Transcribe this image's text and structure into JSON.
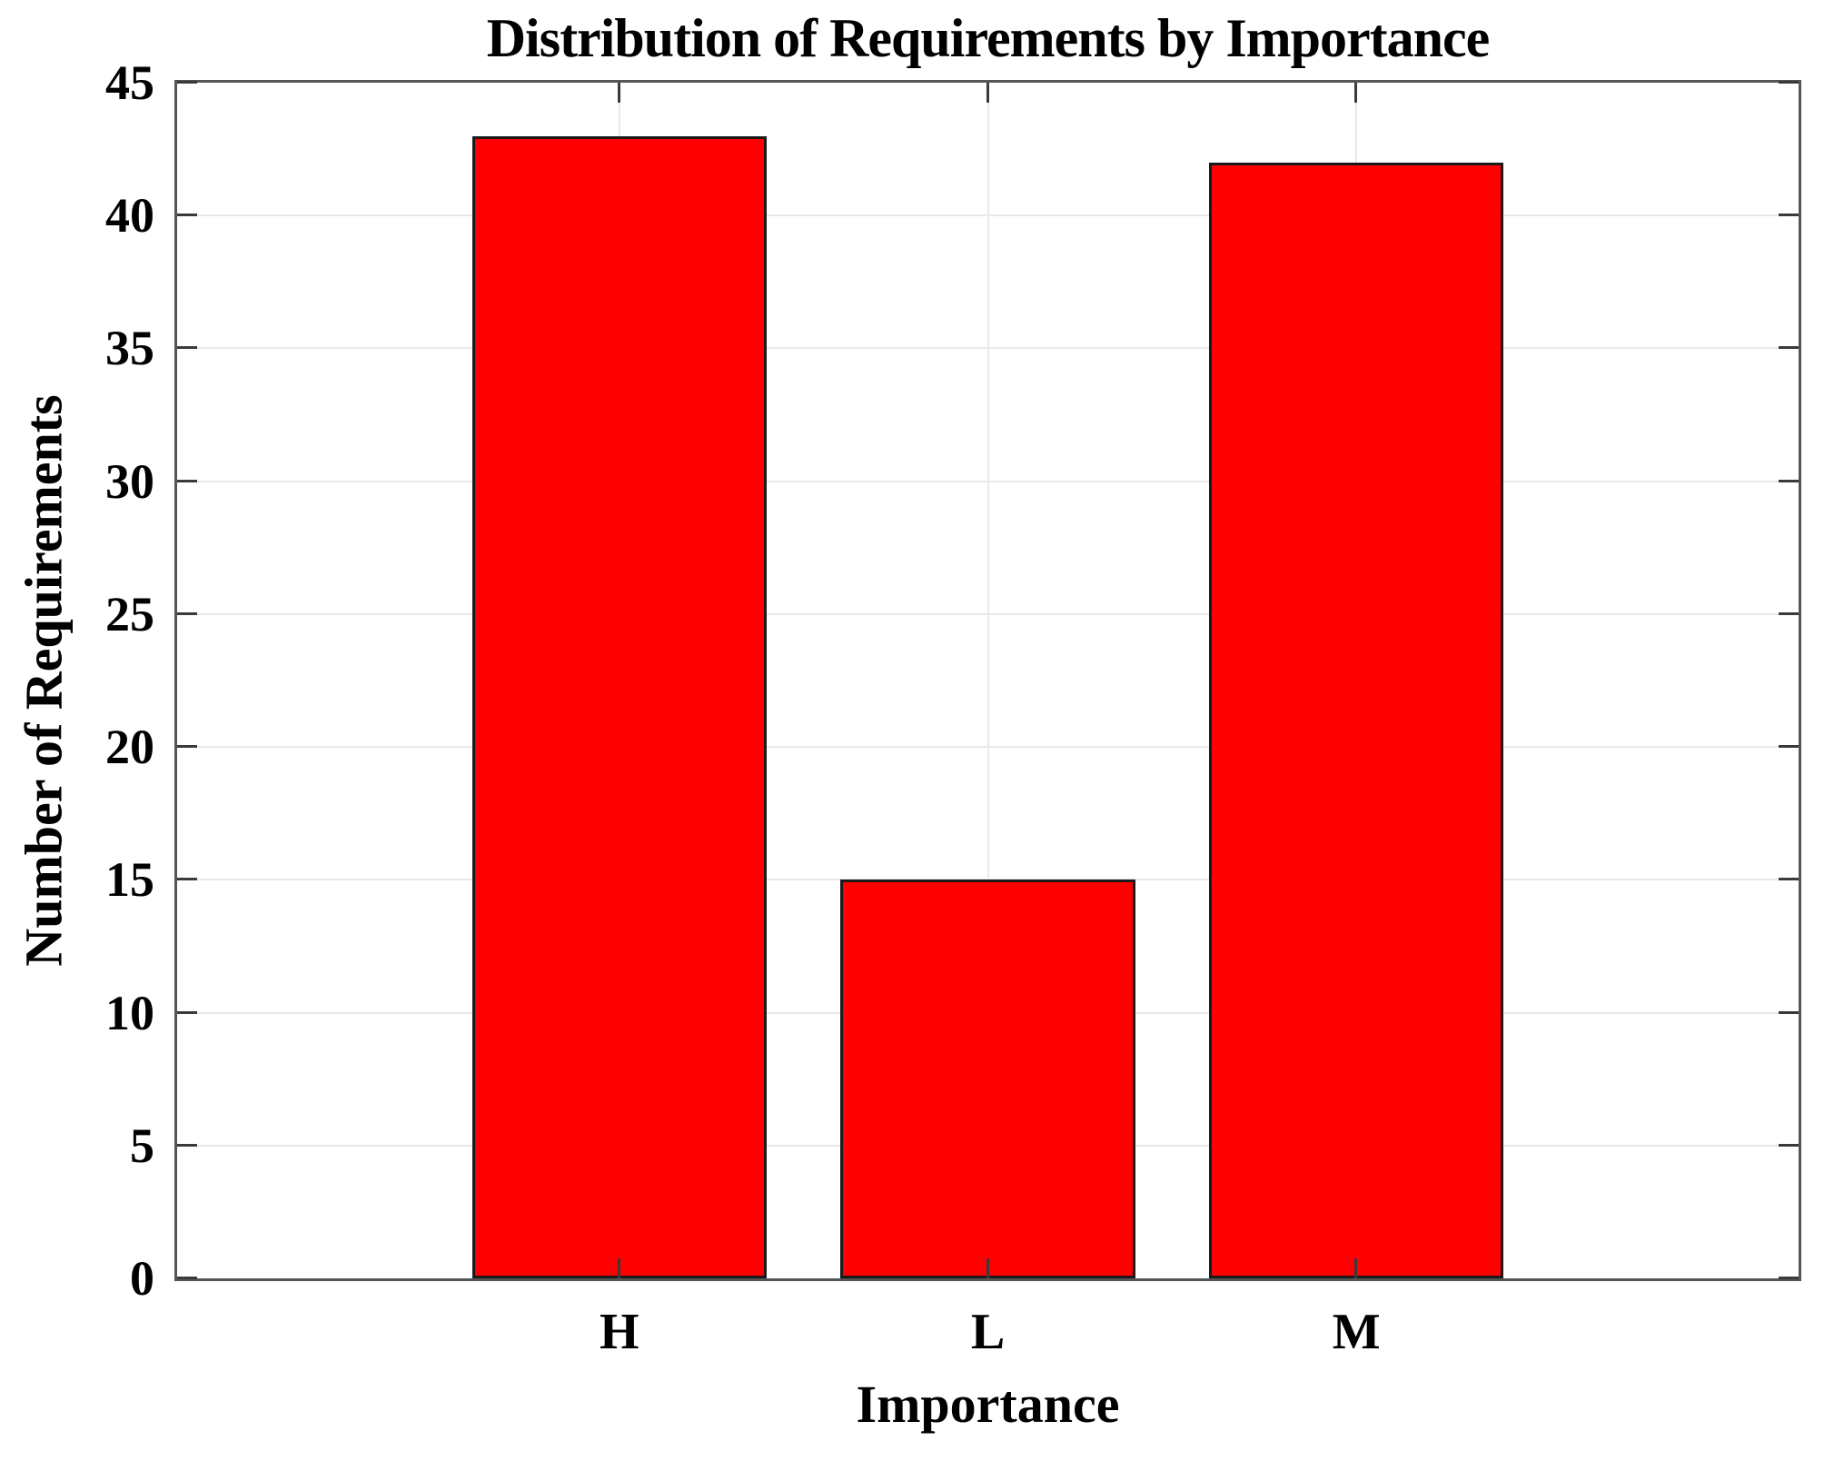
{
  "chart_data": {
    "type": "bar",
    "title": "Distribution of Requirements by Importance",
    "xlabel": "Importance",
    "ylabel": "Number of Requirements",
    "categories": [
      "H",
      "L",
      "M"
    ],
    "values": [
      43,
      15,
      42
    ],
    "ylim": [
      0,
      45
    ],
    "yticks": [
      0,
      5,
      10,
      15,
      20,
      25,
      30,
      35,
      40,
      45
    ],
    "xlim": [
      -0.2,
      4.2
    ],
    "bar_positions": [
      1,
      2,
      3
    ],
    "bar_width_units": 0.8,
    "grid": true,
    "legend": "none",
    "colors": {
      "bar_fill": "#ff0000",
      "bar_edge": "#1a1a1a",
      "grid": "#e9e9e9",
      "axis_frame": "#555555",
      "tick": "#3a3a3a",
      "text": "#000000",
      "background": "#ffffff"
    }
  }
}
